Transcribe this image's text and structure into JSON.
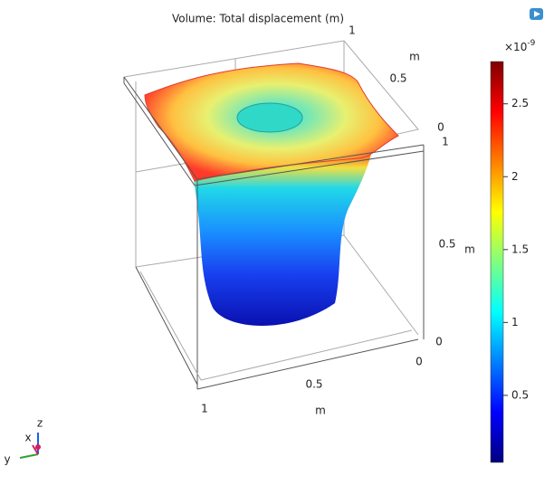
{
  "plot": {
    "title": "Volume: Total displacement (m)",
    "axis_labels": [
      1,
      "m",
      0.5,
      0,
      1,
      0.5,
      "m",
      0,
      0,
      0.5,
      "m",
      1
    ],
    "triad": [
      "z",
      "x",
      "y"
    ],
    "colorbar": {
      "lim": [
        0.04,
        2.79
      ],
      "ticks": [
        0.5,
        1,
        1.5,
        2,
        2.5
      ],
      "multiplier": "×10",
      "exponent": "-9"
    }
  }
}
